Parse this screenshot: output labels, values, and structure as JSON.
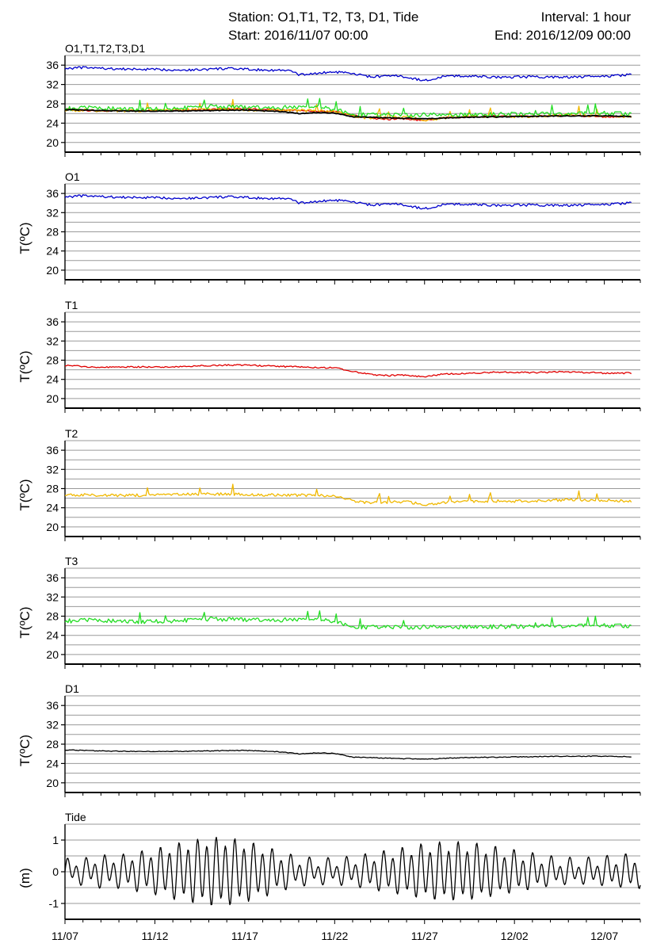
{
  "header": {
    "station": "Station: O1,T1, T2, T3, D1, Tide",
    "start": "Start: 2016/11/07 00:00",
    "interval": "Interval: 1 hour",
    "end": "End: 2016/12/09 00:00"
  },
  "x_tick_labels": [
    "11/07",
    "11/12",
    "11/17",
    "11/22",
    "11/27",
    "12/02",
    "12/07"
  ],
  "colors": {
    "O1": "#0000cc",
    "T1": "#e00000",
    "T2": "#f0b800",
    "T3": "#22dd22",
    "D1": "#000000",
    "Tide": "#000000",
    "grid": "#9a9a9a"
  },
  "chart_data": [
    {
      "type": "line",
      "title": "O1,T1,T2,T3,D1",
      "ylabel": "",
      "x_range_days": [
        0,
        32
      ],
      "x_origin": "2016-11-07",
      "ylim": [
        18,
        38
      ],
      "yticks": [
        20,
        24,
        28,
        32,
        36
      ],
      "grid": true,
      "series": [
        {
          "name": "O1",
          "x": [
            0,
            1,
            3,
            5,
            7,
            9,
            11,
            12.5,
            13,
            14,
            15,
            16,
            17,
            18.5,
            20,
            21,
            22,
            24,
            26,
            28,
            30,
            31.5
          ],
          "values": [
            35.3,
            35.5,
            35.2,
            35.1,
            35.0,
            35.3,
            35.0,
            34.9,
            34.0,
            34.3,
            34.6,
            34.2,
            33.6,
            33.8,
            32.8,
            33.6,
            33.8,
            33.5,
            33.6,
            33.5,
            33.7,
            34.0
          ]
        },
        {
          "name": "T1",
          "x": [
            0,
            2,
            4,
            6,
            8,
            10,
            12,
            14,
            15,
            16,
            17,
            18,
            19,
            20,
            21,
            22,
            24,
            26,
            28,
            30,
            31.5
          ],
          "values": [
            26.9,
            26.5,
            26.6,
            26.6,
            26.9,
            27.0,
            26.7,
            26.5,
            26.4,
            25.7,
            25.0,
            24.8,
            24.9,
            24.5,
            25.1,
            25.2,
            25.5,
            25.4,
            25.6,
            25.3,
            25.3
          ]
        },
        {
          "name": "T2",
          "x": [
            0,
            2,
            4,
            6,
            8,
            10,
            12,
            14,
            15,
            16,
            17,
            18,
            19,
            20,
            21,
            22,
            24,
            26,
            28,
            30,
            31.5
          ],
          "values": [
            26.7,
            26.6,
            26.6,
            26.7,
            26.9,
            26.8,
            26.6,
            26.6,
            26.4,
            25.5,
            25.0,
            25.1,
            25.3,
            24.6,
            25.1,
            25.3,
            25.4,
            25.4,
            25.7,
            25.6,
            25.4
          ]
        },
        {
          "name": "T3",
          "x": [
            0,
            2,
            4,
            6,
            8,
            10,
            12,
            14,
            15,
            16,
            17,
            18,
            19,
            20,
            21,
            22,
            24,
            26,
            28,
            30,
            31.5
          ],
          "values": [
            27.0,
            27.2,
            26.8,
            27.0,
            27.4,
            27.3,
            27.2,
            27.5,
            27.0,
            25.8,
            25.7,
            25.8,
            25.6,
            25.7,
            25.9,
            25.7,
            25.8,
            25.9,
            26.0,
            26.1,
            26.0
          ]
        },
        {
          "name": "D1",
          "x": [
            0,
            2,
            4,
            6,
            8,
            10,
            12,
            13,
            14,
            15,
            16,
            17,
            18,
            19,
            20,
            22,
            24,
            26,
            28,
            30,
            31.5
          ],
          "values": [
            26.8,
            26.6,
            26.5,
            26.5,
            26.6,
            26.7,
            26.4,
            26.0,
            26.2,
            26.1,
            25.3,
            25.2,
            25.1,
            25.0,
            24.9,
            25.2,
            25.3,
            25.4,
            25.5,
            25.5,
            25.4
          ]
        }
      ]
    },
    {
      "type": "line",
      "title": "O1",
      "ylabel": "T(ºC)",
      "ylim": [
        18,
        38
      ],
      "yticks": [
        20,
        24,
        28,
        32,
        36
      ],
      "grid": true,
      "series": [
        {
          "name": "O1",
          "x": [
            0,
            1,
            3,
            5,
            7,
            9,
            11,
            12.5,
            13,
            14,
            15,
            16,
            17,
            18.5,
            20,
            21,
            22,
            24,
            26,
            28,
            30,
            31.5
          ],
          "values": [
            35.3,
            35.5,
            35.2,
            35.1,
            35.0,
            35.3,
            35.0,
            34.9,
            34.0,
            34.3,
            34.6,
            34.2,
            33.6,
            33.8,
            32.8,
            33.6,
            33.8,
            33.5,
            33.6,
            33.5,
            33.7,
            34.0
          ]
        }
      ]
    },
    {
      "type": "line",
      "title": "T1",
      "ylabel": "T(ºC)",
      "ylim": [
        18,
        38
      ],
      "yticks": [
        20,
        24,
        28,
        32,
        36
      ],
      "grid": true,
      "series": [
        {
          "name": "T1",
          "x": [
            0,
            2,
            4,
            6,
            8,
            10,
            12,
            14,
            15,
            16,
            17,
            18,
            19,
            20,
            21,
            22,
            24,
            26,
            28,
            30,
            31.5
          ],
          "values": [
            26.9,
            26.5,
            26.6,
            26.6,
            26.9,
            27.0,
            26.7,
            26.5,
            26.4,
            25.7,
            25.0,
            24.8,
            24.9,
            24.5,
            25.1,
            25.2,
            25.5,
            25.4,
            25.6,
            25.3,
            25.3
          ]
        }
      ]
    },
    {
      "type": "line",
      "title": "T2",
      "ylabel": "T(ºC)",
      "ylim": [
        18,
        38
      ],
      "yticks": [
        20,
        24,
        28,
        32,
        36
      ],
      "grid": true,
      "series": [
        {
          "name": "T2",
          "x": [
            0,
            2,
            4,
            6,
            8,
            10,
            12,
            14,
            15,
            16,
            17,
            18,
            19,
            20,
            21,
            22,
            24,
            26,
            28,
            30,
            31.5
          ],
          "values": [
            26.7,
            26.6,
            26.6,
            26.7,
            26.9,
            26.8,
            26.6,
            26.6,
            26.4,
            25.5,
            25.0,
            25.1,
            25.3,
            24.6,
            25.1,
            25.3,
            25.4,
            25.4,
            25.7,
            25.6,
            25.4
          ]
        }
      ]
    },
    {
      "type": "line",
      "title": "T3",
      "ylabel": "T(ºC)",
      "ylim": [
        18,
        38
      ],
      "yticks": [
        20,
        24,
        28,
        32,
        36
      ],
      "grid": true,
      "series": [
        {
          "name": "T3",
          "x": [
            0,
            2,
            4,
            6,
            8,
            10,
            12,
            14,
            15,
            16,
            17,
            18,
            19,
            20,
            21,
            22,
            24,
            26,
            28,
            30,
            31.5
          ],
          "values": [
            27.0,
            27.2,
            26.8,
            27.0,
            27.4,
            27.3,
            27.2,
            27.5,
            27.0,
            25.8,
            25.7,
            25.8,
            25.6,
            25.7,
            25.9,
            25.7,
            25.8,
            25.9,
            26.0,
            26.1,
            26.0
          ]
        }
      ]
    },
    {
      "type": "line",
      "title": "D1",
      "ylabel": "T(ºC)",
      "ylim": [
        18,
        38
      ],
      "yticks": [
        20,
        24,
        28,
        32,
        36
      ],
      "grid": true,
      "series": [
        {
          "name": "D1",
          "x": [
            0,
            2,
            4,
            6,
            8,
            10,
            12,
            13,
            14,
            15,
            16,
            17,
            18,
            19,
            20,
            22,
            24,
            26,
            28,
            30,
            31.5
          ],
          "values": [
            26.8,
            26.6,
            26.5,
            26.5,
            26.6,
            26.7,
            26.4,
            26.0,
            26.2,
            26.1,
            25.3,
            25.2,
            25.1,
            25.0,
            24.9,
            25.2,
            25.3,
            25.4,
            25.5,
            25.5,
            25.4
          ]
        }
      ]
    },
    {
      "type": "line",
      "title": "Tide",
      "ylabel": "(m)",
      "ylim": [
        -1.5,
        1.5
      ],
      "yticks": [
        -1,
        0,
        1
      ],
      "grid": true,
      "series": [
        {
          "name": "Tide",
          "x": [
            0,
            1,
            2,
            3,
            4,
            5,
            6,
            7,
            8,
            9,
            10,
            11,
            12,
            13,
            14,
            15,
            16,
            17,
            18,
            19,
            20,
            21,
            22,
            23,
            24,
            25,
            26,
            27,
            28,
            29,
            30,
            31,
            32
          ],
          "values": [
            0.3,
            0.3,
            0.4,
            0.4,
            0.5,
            0.6,
            0.75,
            0.85,
            0.95,
            0.95,
            0.85,
            0.7,
            0.5,
            0.35,
            0.3,
            0.3,
            0.35,
            0.45,
            0.55,
            0.65,
            0.75,
            0.8,
            0.8,
            0.75,
            0.65,
            0.55,
            0.45,
            0.35,
            0.3,
            0.3,
            0.35,
            0.4,
            0.45
          ],
          "note_type": "amplitude"
        }
      ]
    }
  ]
}
